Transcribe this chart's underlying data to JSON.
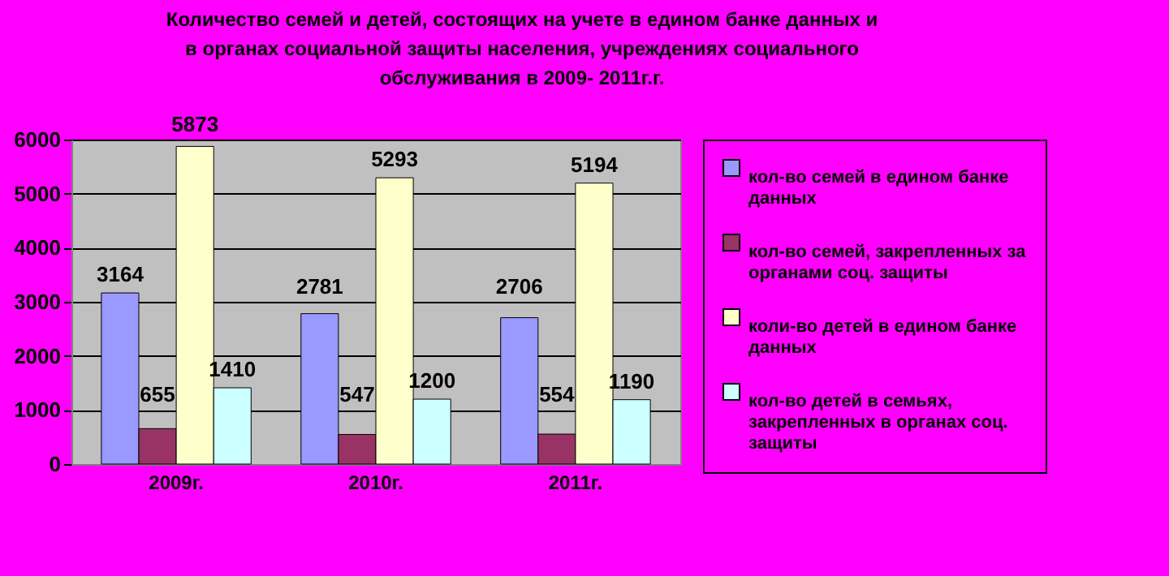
{
  "chart_data": {
    "type": "bar",
    "title": "Количество семей и детей,  состоящих на учете  в едином банке данных и в органах социальной защиты населения, учреждениях социального обслуживания в 2009- 2011г.г.",
    "categories": [
      "2009г.",
      "2010г.",
      "2011г."
    ],
    "series": [
      {
        "name": "кол-во семей в едином банке данных",
        "color": "#9999ff",
        "values": [
          3164,
          2781,
          2706
        ]
      },
      {
        "name": "кол-во семей, закрепленных за органами соц. защиты",
        "color": "#993366",
        "values": [
          655,
          547,
          554
        ]
      },
      {
        "name": "коли-во детей в едином банке данных",
        "color": "#ffffcc",
        "values": [
          5873,
          5293,
          5194
        ]
      },
      {
        "name": "кол-во детей в семьях, закрепленных в органах соц. защиты",
        "color": "#ccffff",
        "values": [
          1410,
          1200,
          1190
        ]
      }
    ],
    "ylim": [
      0,
      6000
    ],
    "yticks": [
      0,
      1000,
      2000,
      3000,
      4000,
      5000,
      6000
    ],
    "grid": "y",
    "legend": "right",
    "data_labels": true
  }
}
